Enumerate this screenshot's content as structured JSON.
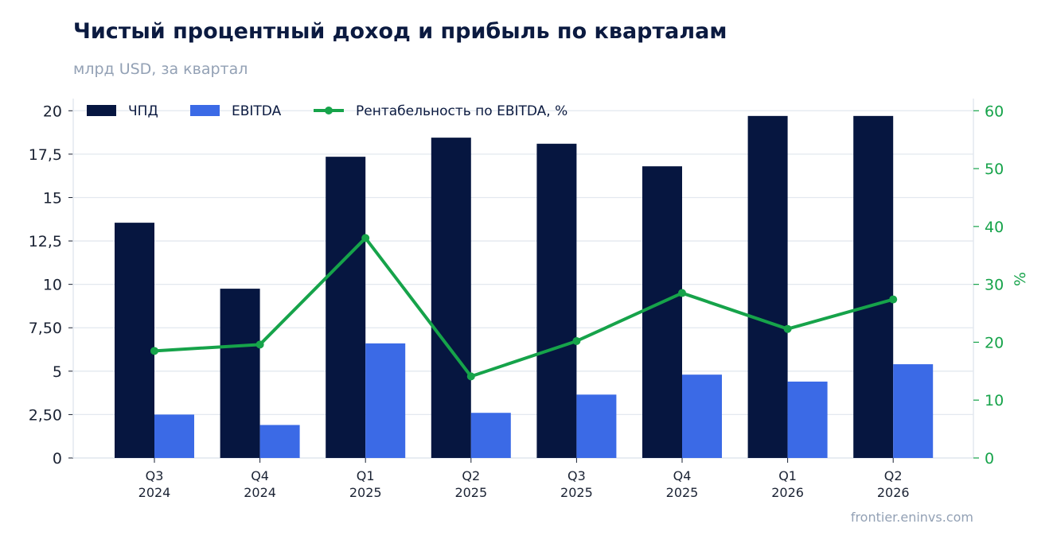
{
  "header": {
    "title": "Чистый процентный доход и прибыль по кварталам",
    "subtitle": "млрд USD, за квартал"
  },
  "footer": {
    "source": "frontier.eninvs.com"
  },
  "colors": {
    "npd": "#061640",
    "ebitda": "#3b6ae6",
    "margin": "#16a34a",
    "grid": "#e3e8ef"
  },
  "chart_data": {
    "type": "bar",
    "categories": [
      [
        "Q3",
        "2024"
      ],
      [
        "Q4",
        "2024"
      ],
      [
        "Q1",
        "2025"
      ],
      [
        "Q2",
        "2025"
      ],
      [
        "Q3",
        "2025"
      ],
      [
        "Q4",
        "2025"
      ],
      [
        "Q1",
        "2026"
      ],
      [
        "Q2",
        "2026"
      ]
    ],
    "series": [
      {
        "name": "ЧПД",
        "type": "bar",
        "axis": "left",
        "values": [
          13.55,
          9.75,
          17.35,
          18.45,
          18.1,
          16.8,
          19.7,
          19.7
        ]
      },
      {
        "name": "EBITDA",
        "type": "bar",
        "axis": "left",
        "values": [
          2.5,
          1.9,
          6.6,
          2.6,
          3.65,
          4.8,
          4.4,
          5.4
        ]
      },
      {
        "name": "Рентабельность по EBITDA, %",
        "type": "line",
        "axis": "right",
        "values": [
          18.5,
          19.6,
          38.0,
          14.1,
          20.2,
          28.5,
          22.3,
          27.4
        ]
      }
    ],
    "y_left": {
      "ylim": [
        0,
        20.7
      ],
      "ticks": [
        0,
        2.5,
        5,
        7.5,
        10,
        12.5,
        15,
        17.5,
        20
      ],
      "tick_labels": [
        "0",
        "2,50",
        "5",
        "7,50",
        "10",
        "12,5",
        "15",
        "17,5",
        "20"
      ]
    },
    "y_right": {
      "label": "%",
      "ylim": [
        0,
        62.1
      ],
      "ticks": [
        0,
        10,
        20,
        30,
        40,
        50,
        60
      ],
      "tick_labels": [
        "0",
        "10",
        "20",
        "30",
        "40",
        "50",
        "60"
      ]
    },
    "grid": true,
    "legend": "top-left"
  }
}
